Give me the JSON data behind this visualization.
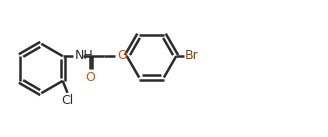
{
  "background_color": "#ffffff",
  "bond_color": "#2b2b2b",
  "atom_color_O": "#e05000",
  "atom_color_N": "#2b2b2b",
  "atom_color_Cl": "#2b2b2b",
  "atom_color_Br": "#8B4000",
  "line_width": 1.8,
  "font_size": 9,
  "figsize": [
    3.28,
    1.37
  ],
  "dpi": 100,
  "xlim": [
    0.0,
    8.2
  ],
  "ylim": [
    0.2,
    2.8
  ]
}
